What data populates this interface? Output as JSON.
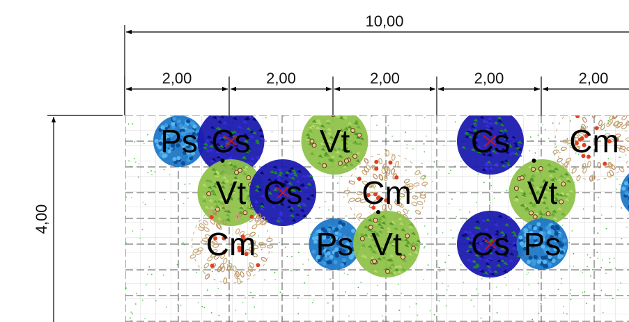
{
  "dimensions": {
    "total_width": "10,00",
    "segments": [
      "2,00",
      "2,00",
      "2,00",
      "2,00",
      "2,00"
    ],
    "total_height": "4,00"
  },
  "species": {
    "Ps": {
      "label": "Ps",
      "colors": [
        "#1f78c8",
        "#3a9be0",
        "#0d4f96",
        "#59b6ee"
      ]
    },
    "Cs": {
      "label": "Cs",
      "colors": [
        "#1b1bb0",
        "#3b2de0",
        "#1a8a2a",
        "#0a0a70"
      ]
    },
    "Vt": {
      "label": "Vt",
      "colors": [
        "#8fc24a",
        "#b6d86a",
        "#4f9a2a",
        "#6fae3a"
      ]
    },
    "Cm": {
      "label": "Cm",
      "colors": [
        "#c8a878",
        "#b89060",
        "#d8b888",
        "#e04020"
      ]
    }
  },
  "plants": [
    {
      "species": "Ps",
      "col": 0,
      "row": 0
    },
    {
      "species": "Cs",
      "col": 1,
      "row": 0
    },
    {
      "species": "Vt",
      "col": 3,
      "row": 0
    },
    {
      "species": "Cs",
      "col": 6,
      "row": 0
    },
    {
      "species": "Cm",
      "col": 8,
      "row": 0
    },
    {
      "species": "Vt",
      "col": 1,
      "row": 1
    },
    {
      "species": "Cs",
      "col": 2,
      "row": 1
    },
    {
      "species": "Cm",
      "col": 4,
      "row": 1
    },
    {
      "species": "Vt",
      "col": 7,
      "row": 1
    },
    {
      "species": "Ps",
      "col": 9,
      "row": 1
    },
    {
      "species": "Cm",
      "col": 1,
      "row": 2
    },
    {
      "species": "Ps",
      "col": 3,
      "row": 2
    },
    {
      "species": "Vt",
      "col": 4,
      "row": 2
    },
    {
      "species": "Cs",
      "col": 6,
      "row": 2
    },
    {
      "species": "Ps",
      "col": 7,
      "row": 2
    }
  ]
}
